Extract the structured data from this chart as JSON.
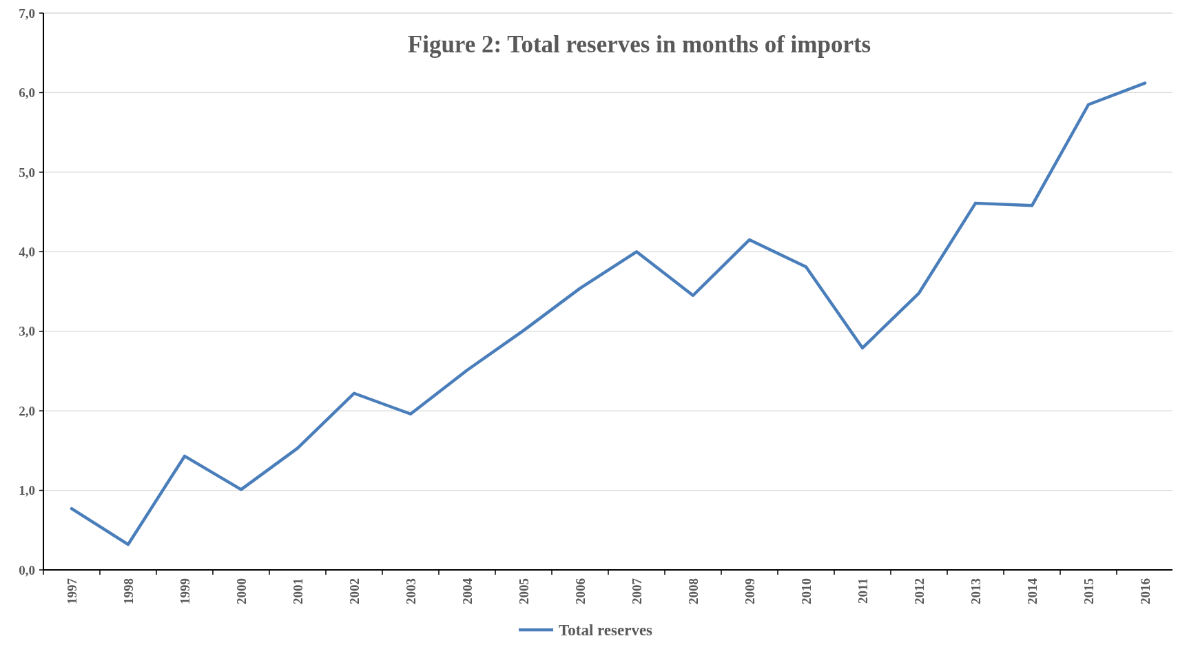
{
  "chart_data": {
    "type": "line",
    "title": "Figure 2: Total reserves in months of imports",
    "categories": [
      "1997",
      "1998",
      "1999",
      "2000",
      "2001",
      "2002",
      "2003",
      "2004",
      "2005",
      "2006",
      "2007",
      "2008",
      "2009",
      "2010",
      "2011",
      "2012",
      "2013",
      "2014",
      "2015",
      "2016"
    ],
    "series": [
      {
        "name": "Total reserves",
        "color": "#4a7ebb",
        "values": [
          0.77,
          0.32,
          1.43,
          1.01,
          1.53,
          2.22,
          1.96,
          2.51,
          3.01,
          3.54,
          4.0,
          3.45,
          4.15,
          3.81,
          2.79,
          3.48,
          4.61,
          4.58,
          5.85,
          6.12
        ]
      }
    ],
    "ylim": [
      0,
      7
    ],
    "yticks": [
      {
        "value": 0,
        "label": "0,0"
      },
      {
        "value": 1,
        "label": "1,0"
      },
      {
        "value": 2,
        "label": "2,0"
      },
      {
        "value": 3,
        "label": "3,0"
      },
      {
        "value": 4,
        "label": "4,0"
      },
      {
        "value": 5,
        "label": "5,0"
      },
      {
        "value": 6,
        "label": "6,0"
      },
      {
        "value": 7,
        "label": "7,0"
      }
    ],
    "grid": "y",
    "legend": "bottom",
    "marker": "none",
    "line_style": "solid"
  }
}
